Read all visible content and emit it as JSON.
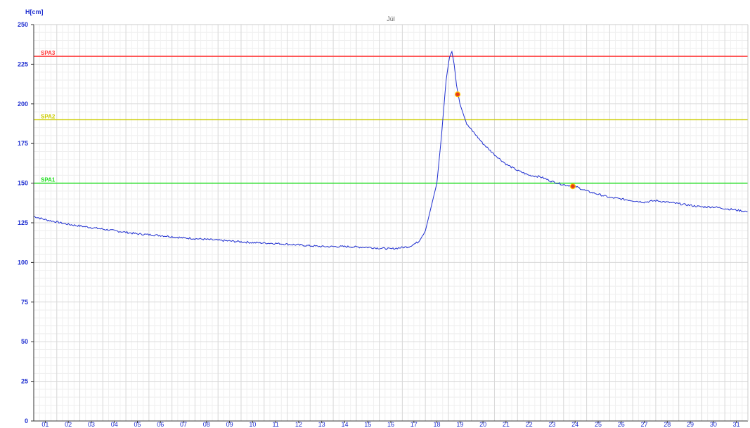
{
  "chart_data": {
    "type": "line",
    "title": "Júl",
    "ylabel": "H[cm]",
    "xlabel": "",
    "ylim": [
      0,
      250
    ],
    "xlim": [
      0.5,
      31.5
    ],
    "yticks": [
      0,
      25,
      50,
      75,
      100,
      125,
      150,
      175,
      200,
      225,
      250
    ],
    "xtick_labels": [
      "01",
      "02",
      "03",
      "04",
      "05",
      "06",
      "07",
      "08",
      "09",
      "10",
      "11",
      "12",
      "13",
      "14",
      "15",
      "16",
      "17",
      "18",
      "19",
      "20",
      "21",
      "22",
      "23",
      "24",
      "25",
      "26",
      "27",
      "28",
      "29",
      "30",
      "31"
    ],
    "grid": true,
    "colors": {
      "axis_text": "#1f2fd0",
      "series": "#1f2fd0",
      "grid": "#d9d9d9",
      "marker": "#e83a1c"
    },
    "reference_lines": [
      {
        "label": "SPA3",
        "value": 230,
        "color": "#ff3b3b"
      },
      {
        "label": "SPA2",
        "value": 190,
        "color": "#cccc00"
      },
      {
        "label": "SPA1",
        "value": 150,
        "color": "#22dd22"
      }
    ],
    "series": [
      {
        "x": [
          0.5,
          1.0,
          2.0,
          3.0,
          4.0,
          5.0,
          6.0,
          7.0,
          8.0,
          9.0,
          10.0,
          11.0,
          12.0,
          13.0,
          14.0,
          15.0,
          16.0,
          16.8,
          17.2,
          17.5,
          17.8,
          18.0,
          18.2,
          18.4,
          18.55,
          18.65,
          18.75,
          18.85,
          19.0,
          19.3,
          19.6,
          20.0,
          20.5,
          21.0,
          21.5,
          22.0,
          22.5,
          23.0,
          23.5,
          24.0,
          24.5,
          25.0,
          25.5,
          26.0,
          26.5,
          27.0,
          27.5,
          28.0,
          28.5,
          29.0,
          29.5,
          30.0,
          30.5,
          31.0,
          31.5
        ],
        "y": [
          129,
          127,
          124,
          122,
          120,
          118,
          117,
          115.5,
          114.5,
          113.5,
          112.5,
          112,
          111,
          110,
          110,
          109.5,
          108.5,
          110,
          113,
          120,
          138,
          150,
          180,
          215,
          230,
          233,
          225,
          212,
          200,
          187,
          182,
          175,
          168,
          162,
          158,
          155,
          154,
          151,
          149,
          148,
          145,
          143,
          141,
          140,
          139,
          138,
          139,
          138,
          137,
          136,
          135,
          135,
          134,
          133,
          132
        ]
      }
    ],
    "markers": [
      {
        "x": 18.9,
        "y": 206
      },
      {
        "x": 23.9,
        "y": 148
      }
    ]
  }
}
